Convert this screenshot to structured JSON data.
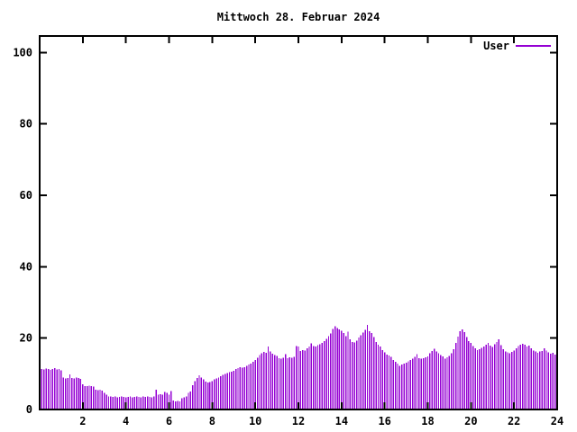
{
  "chart_data": {
    "type": "bar",
    "style": "impulses",
    "title": "Mittwoch 28. Februar 2024",
    "xlabel": "",
    "ylabel": "",
    "xlim": [
      0,
      24
    ],
    "ylim": [
      0,
      104.6
    ],
    "xticks": [
      2,
      4,
      6,
      8,
      10,
      12,
      14,
      16,
      18,
      20,
      22,
      24
    ],
    "yticks": [
      0,
      20,
      40,
      60,
      80,
      100
    ],
    "grid": false,
    "legend": {
      "position": "top-right-inside",
      "entries": [
        "User"
      ]
    },
    "x_first_sample_hours": 0.1,
    "sample_interval_hours": 0.1,
    "colors": {
      "axis": "#000000",
      "text": "#000000",
      "background": "#ffffff",
      "series_user": "#9400d3"
    },
    "series": [
      {
        "name": "User",
        "color": "#9400d3",
        "values": [
          11.4,
          11.2,
          11.5,
          11.3,
          11.1,
          11.4,
          11.6,
          11.2,
          11.4,
          11.0,
          8.9,
          8.7,
          8.8,
          9.8,
          8.8,
          8.7,
          8.9,
          8.8,
          8.6,
          7.0,
          6.6,
          6.5,
          6.7,
          6.5,
          6.4,
          5.6,
          5.4,
          5.5,
          5.3,
          4.6,
          4.2,
          3.7,
          3.6,
          3.5,
          3.6,
          3.4,
          3.5,
          3.6,
          3.5,
          3.4,
          3.5,
          3.6,
          3.4,
          3.5,
          3.7,
          3.5,
          3.4,
          3.6,
          3.5,
          3.6,
          3.5,
          3.4,
          3.6,
          5.6,
          4.2,
          4.3,
          4.2,
          4.9,
          4.7,
          4.2,
          5.2,
          2.5,
          2.3,
          2.4,
          2.3,
          3.1,
          3.4,
          3.6,
          4.7,
          5.0,
          6.8,
          8.0,
          8.8,
          9.6,
          9.0,
          8.4,
          7.8,
          7.6,
          7.7,
          7.9,
          8.4,
          8.7,
          9.0,
          9.3,
          9.7,
          10.0,
          10.2,
          10.4,
          10.6,
          10.9,
          11.3,
          11.6,
          11.8,
          11.7,
          11.9,
          12.2,
          12.6,
          12.9,
          13.3,
          13.8,
          14.5,
          15.2,
          15.8,
          16.1,
          15.9,
          17.6,
          16.2,
          15.6,
          15.2,
          15.0,
          14.4,
          14.3,
          14.5,
          15.5,
          14.4,
          14.6,
          14.5,
          14.7,
          17.8,
          17.6,
          16.4,
          16.6,
          16.5,
          17.2,
          17.6,
          18.5,
          17.8,
          17.7,
          18.0,
          18.3,
          18.7,
          19.2,
          19.8,
          20.6,
          21.3,
          22.5,
          23.3,
          22.8,
          22.4,
          22.0,
          21.4,
          20.6,
          21.8,
          19.6,
          18.9,
          18.8,
          19.3,
          20.2,
          20.8,
          21.6,
          22.3,
          23.7,
          21.9,
          21.4,
          20.3,
          18.9,
          18.2,
          17.6,
          16.6,
          16.0,
          15.4,
          15.1,
          14.7,
          13.9,
          13.4,
          12.8,
          12.2,
          12.6,
          12.9,
          13.1,
          13.5,
          13.9,
          14.3,
          14.7,
          15.5,
          14.4,
          14.2,
          14.4,
          14.6,
          14.9,
          15.7,
          16.4,
          17.0,
          16.2,
          15.8,
          15.3,
          14.9,
          14.3,
          14.6,
          15.0,
          15.8,
          16.9,
          18.6,
          20.4,
          21.9,
          22.4,
          21.7,
          20.3,
          19.2,
          18.7,
          17.8,
          17.2,
          16.6,
          16.9,
          17.3,
          17.7,
          18.2,
          18.6,
          17.9,
          17.5,
          18.3,
          18.9,
          19.6,
          18.0,
          16.9,
          16.3,
          16.0,
          15.7,
          16.1,
          16.5,
          17.2,
          17.8,
          18.1,
          18.4,
          18.2,
          17.7,
          17.9,
          17.1,
          16.5,
          16.2,
          15.9,
          16.2,
          16.4,
          17.1,
          16.5,
          16.0,
          15.6,
          15.9,
          15.4,
          15.2
        ]
      }
    ]
  }
}
